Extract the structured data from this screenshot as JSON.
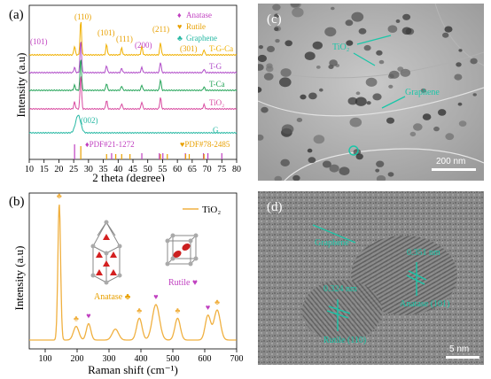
{
  "panels": {
    "a": {
      "label": "(a)",
      "xlabel": "2 theta (degree)",
      "ylabel": "Intensity (a.u)",
      "xticks": [
        "10",
        "15",
        "20",
        "25",
        "30",
        "35",
        "40",
        "45",
        "50",
        "55",
        "60",
        "65",
        "70",
        "75",
        "80"
      ],
      "legend": [
        {
          "symbol": "♦",
          "text": "Anatase",
          "color": "#c03fc0"
        },
        {
          "symbol": "♥",
          "text": "Rutile",
          "color": "#e8a000"
        },
        {
          "symbol": "♣",
          "text": "Graphene",
          "color": "#26b8a3"
        }
      ],
      "peak_labels": [
        "(110)",
        "(101)",
        "(101)",
        "(111)",
        "(200)",
        "(211)",
        "(301)",
        "(002)"
      ],
      "pdf_labels": [
        "♦PDF#21-1272",
        "♥PDF#78-2485"
      ],
      "curve_labels": [
        "T-G-Ca",
        "T-G",
        "T-Ca",
        "TiO₂",
        "G"
      ],
      "colors": {
        "tgca": "#f0b000",
        "tg": "#b04cc8",
        "tca": "#27a55a",
        "tio2": "#d84aa0",
        "g": "#26b8a3",
        "pdf_anatase": "#c03fc0",
        "pdf_rutile": "#e8a000"
      }
    },
    "b": {
      "label": "(b)",
      "xlabel": "Raman shift (cm⁻¹)",
      "ylabel": "Intensity (a.u)",
      "xticks": [
        "100",
        "200",
        "300",
        "400",
        "500",
        "600",
        "700"
      ],
      "legend": "TiO₂",
      "anatase_label": "Anatase ♣",
      "rutile_label": "Rutile ♥",
      "colors": {
        "line": "#f0b040",
        "anatase_mark": "#f0b040",
        "rutile_mark": "#c040c0"
      }
    },
    "c": {
      "label": "(c)",
      "tio2_label": "TiO₂",
      "graphene_label": "Graphene",
      "scalebar": "200 nm"
    },
    "d": {
      "label": "(d)",
      "graphene_label": "Graphene",
      "d1": "0.351 nm",
      "d2": "0.324 nm",
      "anatase_label": "Anatase (101)",
      "rutile_label": "Rutile (110)",
      "scalebar": "5 nm"
    }
  },
  "chart_data": [
    {
      "type": "line",
      "title": "",
      "xlabel": "2 theta (degree)",
      "ylabel": "Intensity (a.u)",
      "xlim": [
        10,
        80
      ],
      "series": [
        {
          "name": "T-G-Ca",
          "peaks": [
            25.3,
            27.4,
            36.1,
            41.2,
            48.0,
            54.3,
            69.0
          ]
        },
        {
          "name": "T-G",
          "peaks": [
            25.3,
            27.4,
            36.1,
            41.2,
            48.0,
            54.3,
            69.0
          ]
        },
        {
          "name": "T-Ca",
          "peaks": [
            25.3,
            27.4,
            36.1,
            41.2,
            48.0,
            54.3,
            69.0
          ]
        },
        {
          "name": "TiO₂",
          "peaks": [
            25.3,
            27.4,
            36.1,
            41.2,
            48.0,
            54.3,
            69.0
          ]
        },
        {
          "name": "G",
          "peaks": [
            26.5
          ]
        }
      ]
    },
    {
      "type": "line",
      "title": "",
      "xlabel": "Raman shift (cm⁻¹)",
      "ylabel": "Intensity (a.u)",
      "xlim": [
        50,
        700
      ],
      "series": [
        {
          "name": "TiO₂",
          "x": [
            144,
            197,
            236,
            320,
            395,
            447,
            515,
            610,
            639
          ],
          "y": [
            1.0,
            0.1,
            0.12,
            0.08,
            0.16,
            0.26,
            0.16,
            0.18,
            0.22
          ]
        }
      ]
    }
  ]
}
